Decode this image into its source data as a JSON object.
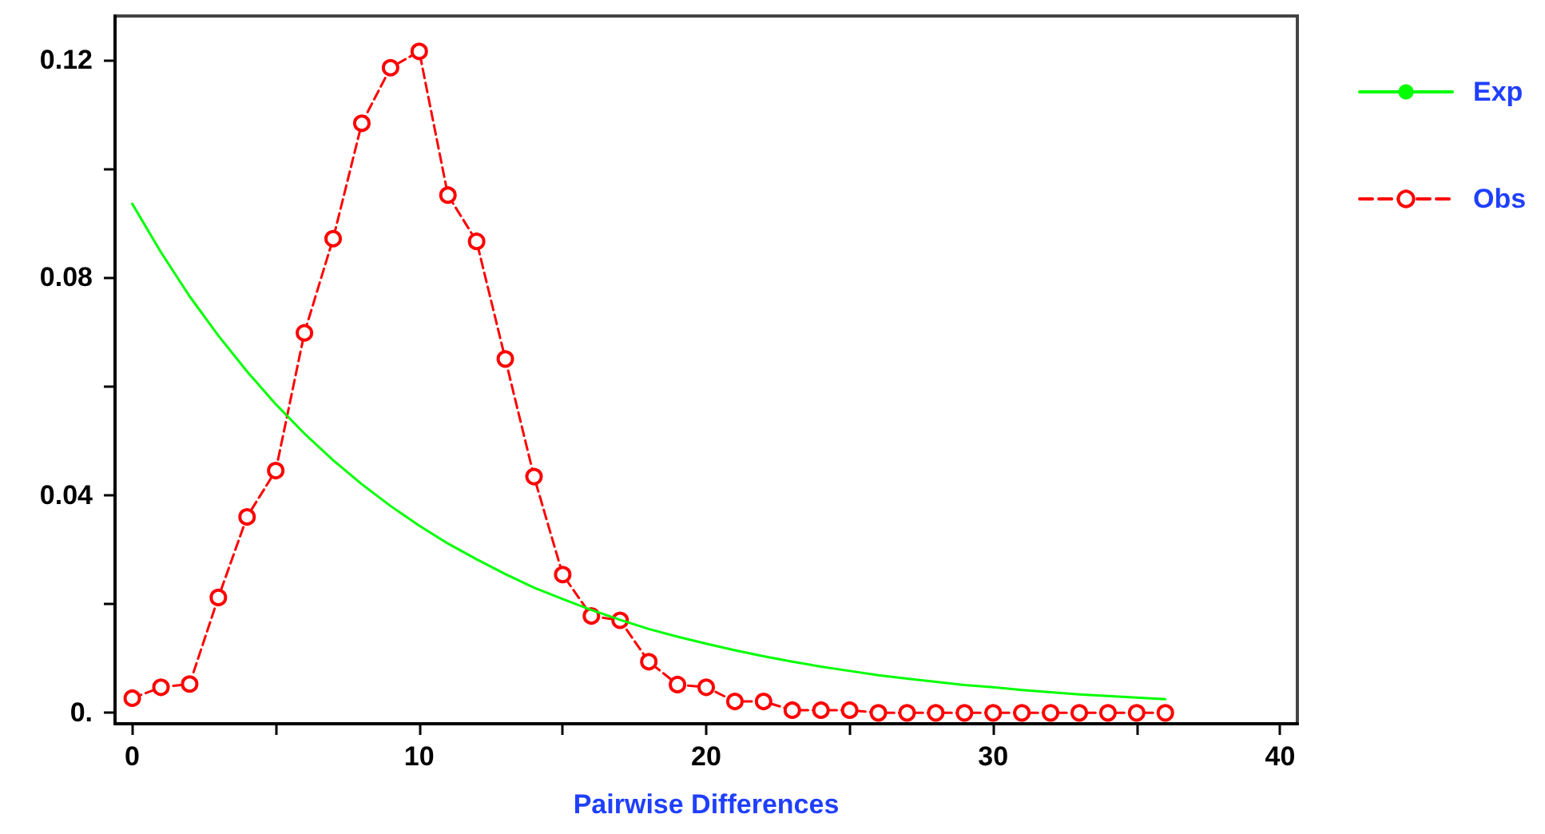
{
  "chart_data": {
    "type": "line",
    "xlabel": "Pairwise Differences",
    "x": [
      0,
      1,
      2,
      3,
      4,
      5,
      6,
      7,
      8,
      9,
      10,
      11,
      12,
      13,
      14,
      15,
      16,
      17,
      18,
      19,
      20,
      21,
      22,
      23,
      24,
      25,
      26,
      27,
      28,
      29,
      30,
      31,
      32,
      33,
      34,
      35,
      36
    ],
    "series": [
      {
        "name": "Exp",
        "color": "#00ff00",
        "marker": "none",
        "line_style": "solid",
        "values": [
          0.0935,
          0.0846,
          0.0765,
          0.0693,
          0.0627,
          0.0567,
          0.0513,
          0.0464,
          0.042,
          0.038,
          0.0344,
          0.0311,
          0.0282,
          0.0255,
          0.023,
          0.0209,
          0.0189,
          0.0171,
          0.0154,
          0.014,
          0.0127,
          0.0115,
          0.0104,
          0.0094,
          0.0085,
          0.0077,
          0.0069,
          0.0063,
          0.0057,
          0.0051,
          0.0047,
          0.0042,
          0.0038,
          0.0034,
          0.0031,
          0.0028,
          0.0025
        ]
      },
      {
        "name": "Obs",
        "color": "#ff0000",
        "marker": "circle",
        "line_style": "dashed",
        "values": [
          0.0027,
          0.0047,
          0.0053,
          0.0212,
          0.036,
          0.0445,
          0.0698,
          0.0871,
          0.1083,
          0.1185,
          0.1215,
          0.0951,
          0.0866,
          0.065,
          0.0434,
          0.0254,
          0.0178,
          0.017,
          0.0094,
          0.0052,
          0.0047,
          0.0021,
          0.0021,
          0.0005,
          0.0005,
          0.0005,
          0,
          0,
          0,
          0,
          0,
          0,
          0,
          0,
          0,
          0,
          0
        ]
      }
    ],
    "xlim": [
      -0.6,
      40.6
    ],
    "xticks": [
      0,
      {
        "value": 5,
        "label": null
      },
      10,
      {
        "value": 15,
        "label": null
      },
      20,
      {
        "value": 25,
        "label": null
      },
      30,
      {
        "value": 35,
        "label": null
      },
      40
    ],
    "ylim": [
      -0.002,
      0.128
    ],
    "yticks": [
      {
        "value": 0,
        "label": "0."
      },
      {
        "value": 0.02,
        "label": null
      },
      0.04,
      {
        "value": 0.06,
        "label": null
      },
      0.08,
      {
        "value": 0.1,
        "label": null
      },
      0.12
    ],
    "grid": false,
    "legend": "right"
  }
}
